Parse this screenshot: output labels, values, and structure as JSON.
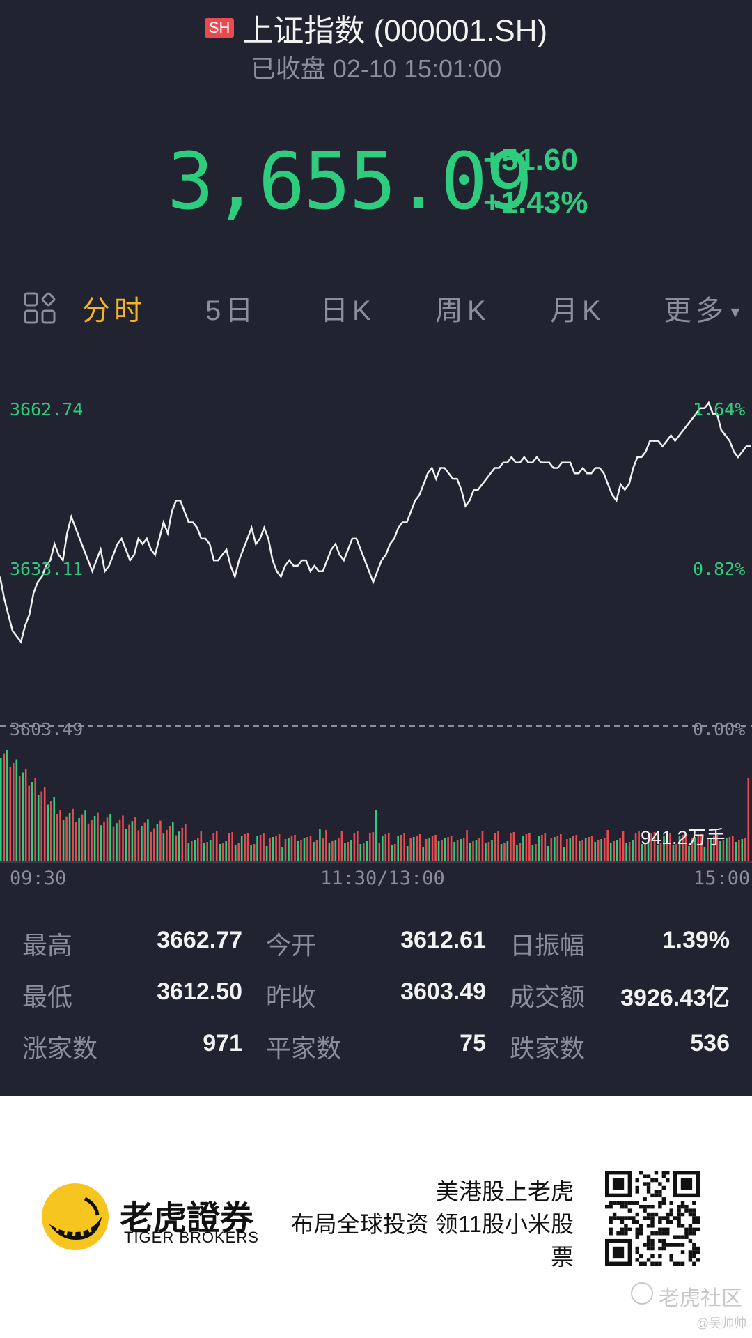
{
  "header": {
    "badge": "SH",
    "title": "上证指数 (000001.SH)",
    "status": "已收盘 02-10 15:01:00"
  },
  "quote": {
    "price": "3,655.09",
    "change": "+51.60",
    "change_pct": "+1.43%"
  },
  "tabs": [
    {
      "label": "分时",
      "active": true
    },
    {
      "label": "5日",
      "active": false
    },
    {
      "label": "日K",
      "active": false
    },
    {
      "label": "周K",
      "active": false
    },
    {
      "label": "月K",
      "active": false
    },
    {
      "label": "更多",
      "active": false
    }
  ],
  "chart_labels": {
    "y_top": "3662.74",
    "y_mid": "3633.11",
    "y_base": "3603.49",
    "pct_top": "1.64%",
    "pct_mid": "0.82%",
    "pct_base": "0.00%",
    "volume": "941.2万手",
    "time_start": "09:30",
    "time_mid": "11:30/13:00",
    "time_end": "15:00"
  },
  "stats": [
    {
      "label": "最高",
      "value": "3662.77"
    },
    {
      "label": "今开",
      "value": "3612.61"
    },
    {
      "label": "日振幅",
      "value": "1.39%"
    },
    {
      "label": "最低",
      "value": "3612.50"
    },
    {
      "label": "昨收",
      "value": "3603.49"
    },
    {
      "label": "成交额",
      "value": "3926.43亿"
    },
    {
      "label": "涨家数",
      "value": "971"
    },
    {
      "label": "平家数",
      "value": "75"
    },
    {
      "label": "跌家数",
      "value": "536"
    }
  ],
  "footer": {
    "brand_cn": "老虎證券",
    "brand_en": "TIGER BROKERS",
    "promo_line1": "美港股上老虎",
    "promo_line2": "布局全球投资 领11股小米股",
    "promo_line3": "票",
    "watermark": "老虎社区",
    "watermark_user": "@吴帅帅"
  },
  "colors": {
    "background": "#222330",
    "up_green": "#2ecc7d",
    "down_red": "#e84a4f",
    "active_tab": "#f4b51f"
  },
  "chart_data": {
    "type": "line",
    "title": "",
    "x_range": [
      "09:30",
      "15:00"
    ],
    "y_range": [
      3603.49,
      3662.74
    ],
    "baseline": 3603.49,
    "price_points": [
      3631,
      3627,
      3624,
      3621,
      3620,
      3619,
      3622,
      3624,
      3628,
      3630,
      3631,
      3633,
      3634,
      3637,
      3635,
      3634,
      3639,
      3642,
      3640,
      3638,
      3636,
      3634,
      3632,
      3634,
      3636,
      3632,
      3633,
      3635,
      3637,
      3638,
      3636,
      3634,
      3635,
      3638,
      3637,
      3638,
      3636,
      3635,
      3638,
      3641,
      3639,
      3643,
      3645,
      3645,
      3643,
      3641,
      3641,
      3640,
      3638,
      3638,
      3637,
      3634,
      3634,
      3635,
      3636,
      3633,
      3631,
      3634,
      3636,
      3638,
      3640,
      3637,
      3638,
      3640,
      3638,
      3634,
      3632,
      3631,
      3633,
      3634,
      3633,
      3633,
      3634,
      3634,
      3632,
      3633,
      3632,
      3632,
      3634,
      3636,
      3637,
      3635,
      3634,
      3636,
      3638,
      3638,
      3636,
      3634,
      3632,
      3630,
      3632,
      3634,
      3635,
      3637,
      3638,
      3640,
      3641,
      3641,
      3643,
      3645,
      3646,
      3648,
      3650,
      3651,
      3649,
      3651,
      3651,
      3650,
      3649,
      3649,
      3647,
      3644,
      3645,
      3647,
      3647,
      3648,
      3649,
      3650,
      3651,
      3651,
      3652,
      3652,
      3653,
      3652,
      3652,
      3653,
      3652,
      3652,
      3653,
      3652,
      3652,
      3652,
      3651,
      3651,
      3652,
      3652,
      3652,
      3650,
      3650,
      3651,
      3650,
      3650,
      3651,
      3651,
      3650,
      3648,
      3646,
      3645,
      3648,
      3647,
      3648,
      3651,
      3653,
      3653,
      3654,
      3656,
      3656,
      3656,
      3655,
      3656,
      3657,
      3656,
      3657,
      3658,
      3659,
      3660,
      3661,
      3662,
      3662,
      3663,
      3661,
      3661,
      3658,
      3657,
      3656,
      3654,
      3653,
      3654,
      3655,
      3655
    ],
    "volume_note": "941.2万手"
  }
}
